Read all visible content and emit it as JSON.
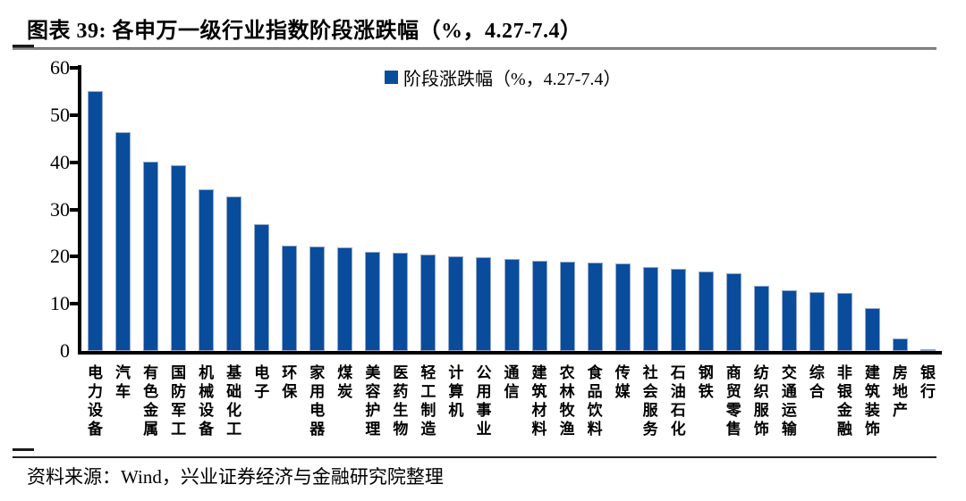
{
  "figure": {
    "title": "图表 39:  各申万一级行业指数阶段涨跌幅（%，4.27-7.4）",
    "source": "资料来源：Wind，兴业证券经济与金融研究院整理"
  },
  "chart_data": {
    "type": "bar",
    "title": "各申万一级行业指数阶段涨跌幅（%，4.27-7.4）",
    "legend": [
      "阶段涨跌幅（%，4.27-7.4）"
    ],
    "legend_position": "top",
    "grid": false,
    "xlabel": "",
    "ylabel": "",
    "ylim": [
      0,
      60
    ],
    "yticks": [
      0,
      10,
      20,
      30,
      40,
      50,
      60
    ],
    "bar_color": "#0a4c9c",
    "bar_border_color": "#93a9cb",
    "categories": [
      "电力设备",
      "汽车",
      "有色金属",
      "国防军工",
      "机械设备",
      "基础化工",
      "电子",
      "环保",
      "家用电器",
      "煤炭",
      "美容护理",
      "医药生物",
      "轻工制造",
      "计算机",
      "公用事业",
      "通信",
      "建筑材料",
      "农林牧渔",
      "食品饮料",
      "传媒",
      "社会服务",
      "石油石化",
      "钢铁",
      "商贸零售",
      "纺织服饰",
      "交通运输",
      "综合",
      "非银金融",
      "建筑装饰",
      "房地产",
      "银行"
    ],
    "values": [
      55.0,
      46.3,
      40.2,
      39.4,
      34.3,
      32.7,
      26.9,
      22.4,
      22.2,
      22.0,
      21.0,
      20.8,
      20.5,
      20.1,
      19.8,
      19.5,
      19.2,
      18.9,
      18.7,
      18.5,
      17.8,
      17.5,
      16.8,
      16.4,
      13.8,
      12.8,
      12.4,
      12.3,
      9.1,
      2.7,
      0.4
    ]
  }
}
